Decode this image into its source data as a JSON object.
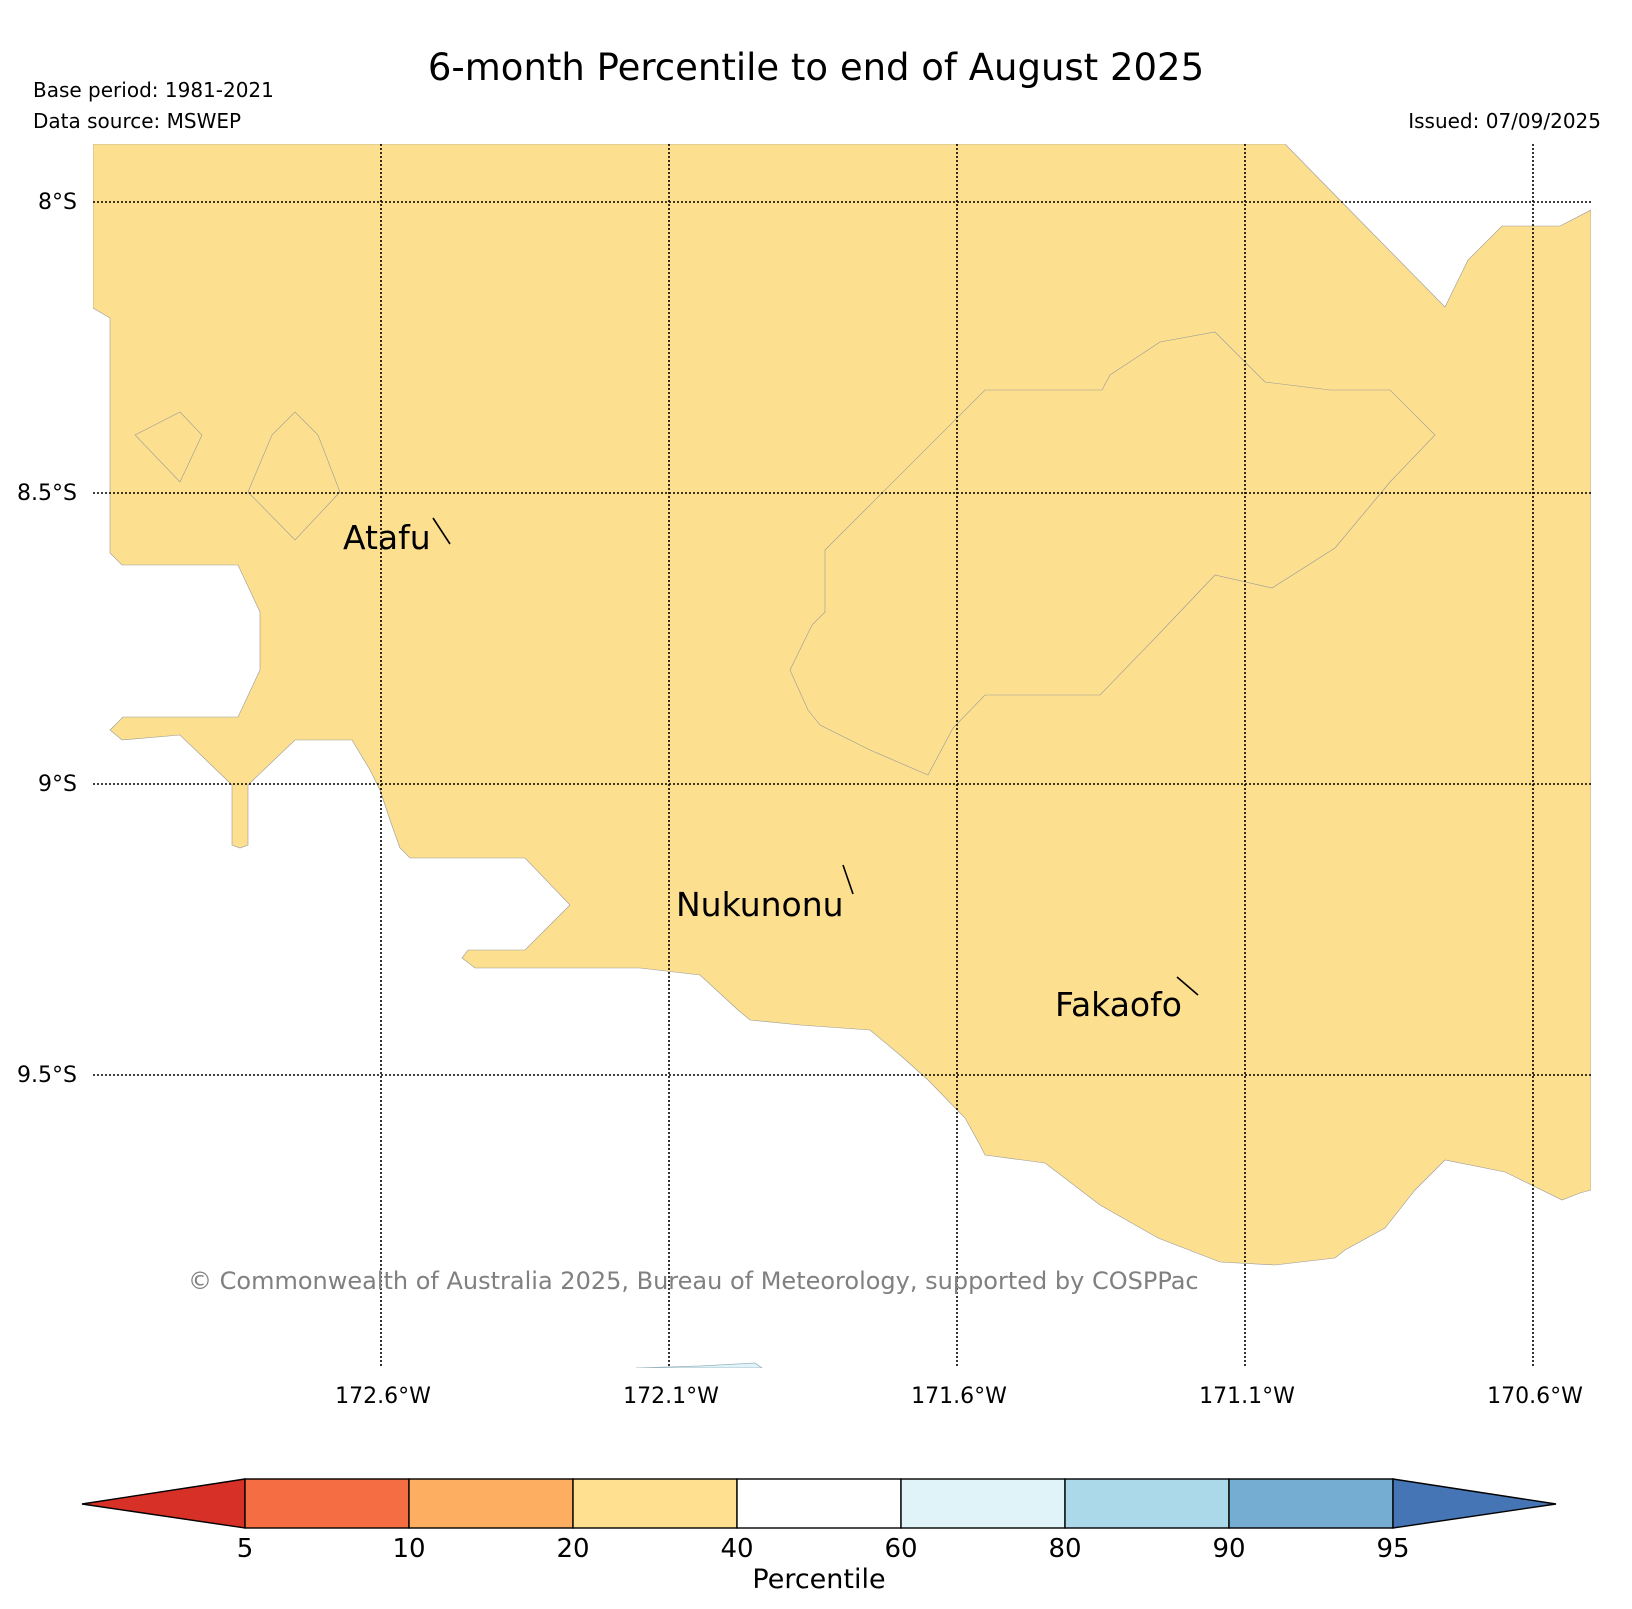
{
  "title": "6-month Percentile to end of August 2025",
  "meta": {
    "base_period": "Base period: 1981-2021",
    "data_source": "Data source: MSWEP",
    "issued": "Issued: 07/09/2025"
  },
  "axes": {
    "lat_labels": [
      "8°S",
      "8.5°S",
      "9°S",
      "9.5°S"
    ],
    "lon_labels": [
      "172.6°W",
      "172.1°W",
      "171.6°W",
      "171.1°W",
      "170.6°W"
    ]
  },
  "places": [
    "Atafu",
    "Nukunonu",
    "Fakaofo"
  ],
  "copyright": "© Commonwealth of Australia 2025, Bureau of Meteorology, supported by COSPPac",
  "colorbar": {
    "label": "Percentile",
    "ticks": [
      "5",
      "10",
      "20",
      "40",
      "60",
      "80",
      "90",
      "95"
    ],
    "colors": {
      "below_5": "#d73027",
      "5_10": "#f46d43",
      "10_20": "#fdae61",
      "20_40": "#fee090",
      "40_60": "#ffffff",
      "60_80": "#e0f3f8",
      "80_90": "#abd9e9",
      "90_95": "#74add1",
      "above_95": "#4575b4"
    }
  },
  "map_fill": {
    "dominant_category": "20-40",
    "dominant_color": "#fddf90",
    "other_category": "40-60",
    "other_color": "#ffffff"
  }
}
